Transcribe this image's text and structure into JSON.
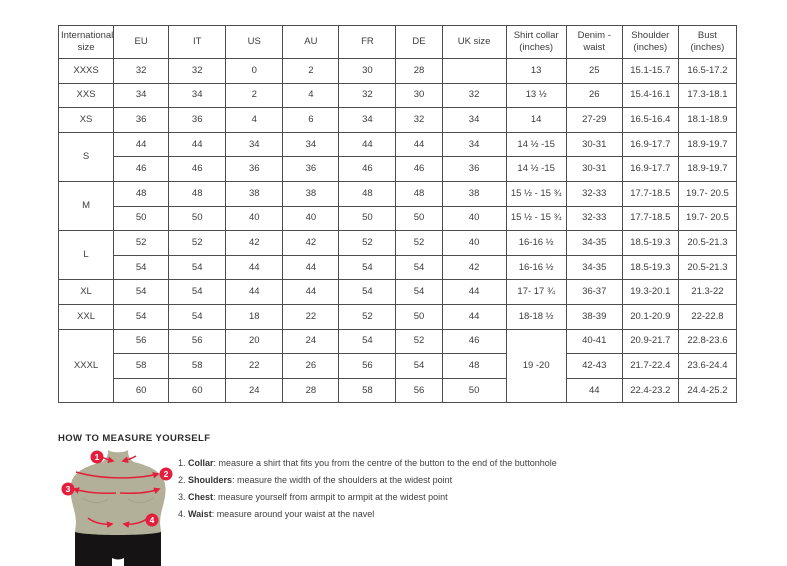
{
  "table": {
    "headers": [
      "International size",
      "EU",
      "IT",
      "US",
      "AU",
      "FR",
      "DE",
      "UK size",
      "Shirt collar (inches)",
      "Denim - waist",
      "Shoulder (inches)",
      "Bust (inches)"
    ],
    "rows": [
      [
        {
          "t": "XXXS"
        },
        {
          "t": "32"
        },
        {
          "t": "32"
        },
        {
          "t": "0"
        },
        {
          "t": "2"
        },
        {
          "t": "30"
        },
        {
          "t": "28"
        },
        {
          "t": ""
        },
        {
          "t": "13"
        },
        {
          "t": "25"
        },
        {
          "t": "15.1-15.7"
        },
        {
          "t": "16.5-17.2"
        }
      ],
      [
        {
          "t": "XXS"
        },
        {
          "t": "34"
        },
        {
          "t": "34"
        },
        {
          "t": "2"
        },
        {
          "t": "4"
        },
        {
          "t": "32"
        },
        {
          "t": "30"
        },
        {
          "t": "32"
        },
        {
          "t": "13 ½"
        },
        {
          "t": "26"
        },
        {
          "t": "15.4-16.1"
        },
        {
          "t": "17.3-18.1"
        }
      ],
      [
        {
          "t": "XS"
        },
        {
          "t": "36"
        },
        {
          "t": "36"
        },
        {
          "t": "4"
        },
        {
          "t": "6"
        },
        {
          "t": "34"
        },
        {
          "t": "32"
        },
        {
          "t": "34"
        },
        {
          "t": "14"
        },
        {
          "t": "27-29"
        },
        {
          "t": "16.5-16.4"
        },
        {
          "t": "18.1-18.9"
        }
      ],
      [
        {
          "t": "S",
          "rs": 2
        },
        {
          "t": "44"
        },
        {
          "t": "44"
        },
        {
          "t": "34"
        },
        {
          "t": "34"
        },
        {
          "t": "44"
        },
        {
          "t": "44"
        },
        {
          "t": "34"
        },
        {
          "t": "14 ½ -15"
        },
        {
          "t": "30-31"
        },
        {
          "t": "16.9-17.7"
        },
        {
          "t": "18.9-19.7"
        }
      ],
      [
        {
          "t": "46"
        },
        {
          "t": "46"
        },
        {
          "t": "36"
        },
        {
          "t": "36"
        },
        {
          "t": "46"
        },
        {
          "t": "46"
        },
        {
          "t": "36"
        },
        {
          "t": "14 ½ -15"
        },
        {
          "t": "30-31"
        },
        {
          "t": "16.9-17.7"
        },
        {
          "t": "18.9-19.7"
        }
      ],
      [
        {
          "t": "M",
          "rs": 2
        },
        {
          "t": "48"
        },
        {
          "t": "48"
        },
        {
          "t": "38"
        },
        {
          "t": "38"
        },
        {
          "t": "48"
        },
        {
          "t": "48"
        },
        {
          "t": "38"
        },
        {
          "t": "15 ½ - 15 ¾"
        },
        {
          "t": "32-33"
        },
        {
          "t": "17.7-18.5"
        },
        {
          "t": "19.7- 20.5"
        }
      ],
      [
        {
          "t": "50"
        },
        {
          "t": "50"
        },
        {
          "t": "40"
        },
        {
          "t": "40"
        },
        {
          "t": "50"
        },
        {
          "t": "50"
        },
        {
          "t": "40"
        },
        {
          "t": "15 ½ - 15 ¾"
        },
        {
          "t": "32-33"
        },
        {
          "t": "17.7-18.5"
        },
        {
          "t": "19.7- 20.5"
        }
      ],
      [
        {
          "t": "L",
          "rs": 2
        },
        {
          "t": "52"
        },
        {
          "t": "52"
        },
        {
          "t": "42"
        },
        {
          "t": "42"
        },
        {
          "t": "52"
        },
        {
          "t": "52"
        },
        {
          "t": "40"
        },
        {
          "t": "16-16 ½"
        },
        {
          "t": "34-35"
        },
        {
          "t": "18.5-19.3"
        },
        {
          "t": "20.5-21.3"
        }
      ],
      [
        {
          "t": "54"
        },
        {
          "t": "54"
        },
        {
          "t": "44"
        },
        {
          "t": "44"
        },
        {
          "t": "54"
        },
        {
          "t": "54"
        },
        {
          "t": "42"
        },
        {
          "t": "16-16 ½"
        },
        {
          "t": "34-35"
        },
        {
          "t": "18.5-19.3"
        },
        {
          "t": "20.5-21.3"
        }
      ],
      [
        {
          "t": "XL"
        },
        {
          "t": "54"
        },
        {
          "t": "54"
        },
        {
          "t": "44"
        },
        {
          "t": "44"
        },
        {
          "t": "54"
        },
        {
          "t": "54"
        },
        {
          "t": "44"
        },
        {
          "t": "17- 17 ¾"
        },
        {
          "t": "36-37"
        },
        {
          "t": "19.3-20.1"
        },
        {
          "t": "21.3-22"
        }
      ],
      [
        {
          "t": "XXL"
        },
        {
          "t": "54"
        },
        {
          "t": "54"
        },
        {
          "t": "18"
        },
        {
          "t": "22"
        },
        {
          "t": "52"
        },
        {
          "t": "50"
        },
        {
          "t": "44"
        },
        {
          "t": "18-18 ½"
        },
        {
          "t": "38-39"
        },
        {
          "t": "20.1-20.9"
        },
        {
          "t": "22-22.8"
        }
      ],
      [
        {
          "t": "XXXL",
          "rs": 3
        },
        {
          "t": "56"
        },
        {
          "t": "56"
        },
        {
          "t": "20"
        },
        {
          "t": "24"
        },
        {
          "t": "54"
        },
        {
          "t": "52"
        },
        {
          "t": "46"
        },
        {
          "t": "19 -20",
          "rs": 3
        },
        {
          "t": "40-41"
        },
        {
          "t": "20.9-21.7"
        },
        {
          "t": "22.8-23.6"
        }
      ],
      [
        {
          "t": "58"
        },
        {
          "t": "58"
        },
        {
          "t": "22"
        },
        {
          "t": "26"
        },
        {
          "t": "56"
        },
        {
          "t": "54"
        },
        {
          "t": "48"
        },
        {
          "t": "42-43"
        },
        {
          "t": "21.7-22.4"
        },
        {
          "t": "23.6-24.4"
        }
      ],
      [
        {
          "t": "60"
        },
        {
          "t": "60"
        },
        {
          "t": "24"
        },
        {
          "t": "28"
        },
        {
          "t": "58"
        },
        {
          "t": "56"
        },
        {
          "t": "50"
        },
        {
          "t": "44"
        },
        {
          "t": "22.4-23.2"
        },
        {
          "t": "24.4-25.2"
        }
      ]
    ]
  },
  "how_to": {
    "title": "HOW TO MEASURE YOURSELF",
    "steps": [
      {
        "num": "1. ",
        "label": "Collar",
        "text": ": measure a shirt that fits you from the centre of the button to the end of the buttonhole"
      },
      {
        "num": "2. ",
        "label": "Shoulders",
        "text": ": measure the width of the shoulders at the widest point"
      },
      {
        "num": "3. ",
        "label": "Chest",
        "text": ": measure yourself from armpit to armpit at the widest point"
      },
      {
        "num": "4. ",
        "label": "Waist",
        "text": ": measure around your waist at the navel"
      }
    ],
    "figure_markers": [
      "1",
      "2",
      "3",
      "4"
    ]
  },
  "colors": {
    "accent_red": "#e2203d",
    "mannequin_body": "#b2b099",
    "mannequin_shorts": "#161314",
    "table_border": "#4d4d4d"
  }
}
